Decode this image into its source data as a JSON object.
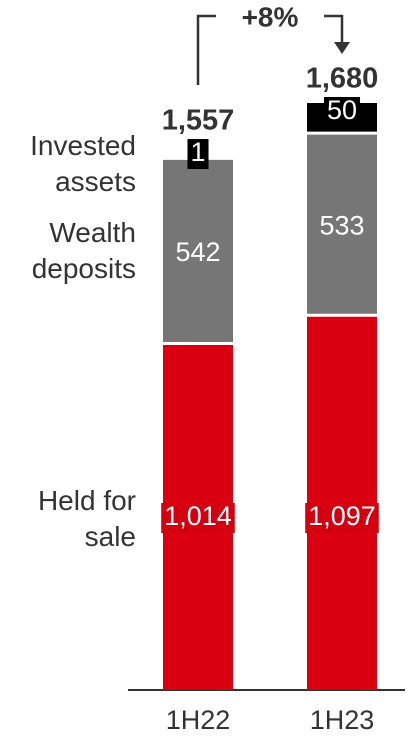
{
  "chart_data": {
    "type": "stacked_bar",
    "categories": [
      "1H22",
      "1H23"
    ],
    "series": [
      {
        "name": "Invested assets",
        "color": "#db0011",
        "values": [
          1014,
          1097
        ],
        "value_labels": [
          "1,014",
          "1,097"
        ]
      },
      {
        "name": "Wealth deposits",
        "color": "#767676",
        "values": [
          542,
          533
        ]
      },
      {
        "name": "Held for sale",
        "color": "#000000",
        "values": [
          1,
          50
        ]
      }
    ],
    "totals": [
      1557,
      1680
    ],
    "total_labels": [
      "1,557",
      "1,680"
    ],
    "annotation": "+8%"
  }
}
